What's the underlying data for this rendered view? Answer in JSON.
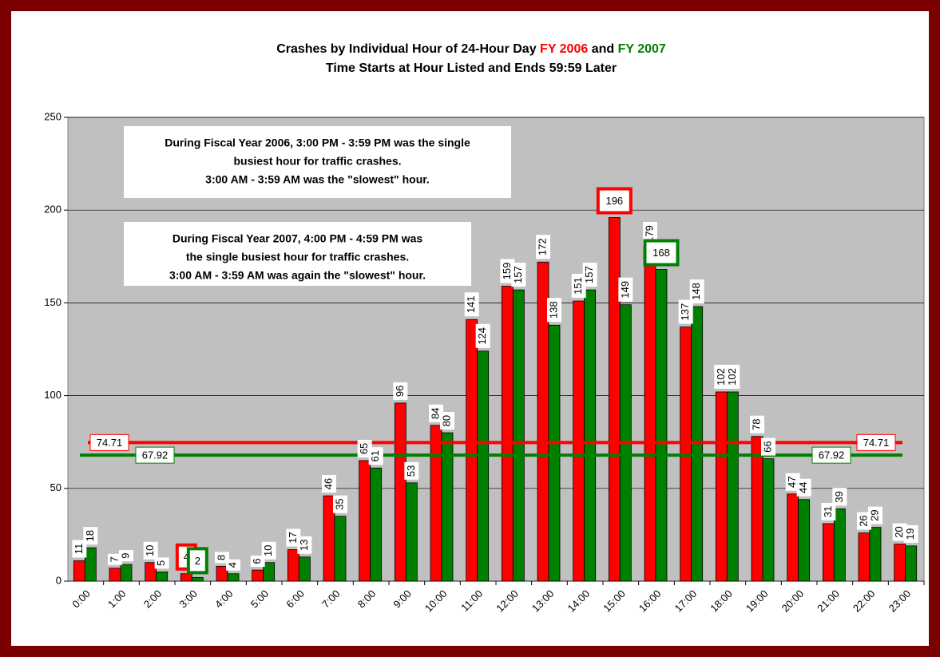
{
  "chart_data": {
    "type": "bar",
    "title": "Crashes by Individual Hour of 24-Hour Day",
    "title_joiner": "and",
    "subtitle": "Time Starts at Hour Listed and Ends 59:59 Later",
    "categories": [
      "0:00",
      "1:00",
      "2:00",
      "3:00",
      "4:00",
      "5:00",
      "6:00",
      "7:00",
      "8:00",
      "9:00",
      "10:00",
      "11:00",
      "12:00",
      "13:00",
      "14:00",
      "15:00",
      "16:00",
      "17:00",
      "18:00",
      "19:00",
      "20:00",
      "21:00",
      "22:00",
      "23:00"
    ],
    "series": [
      {
        "name": "FY 2006",
        "color": "#ff0000",
        "highlight": [
          3,
          15
        ],
        "values": [
          11,
          7,
          10,
          4,
          8,
          6,
          17,
          46,
          65,
          96,
          84,
          141,
          159,
          172,
          151,
          196,
          179,
          137,
          102,
          78,
          47,
          31,
          26,
          20
        ]
      },
      {
        "name": "FY 2007",
        "color": "#008000",
        "highlight": [
          3,
          16
        ],
        "values": [
          18,
          9,
          5,
          2,
          4,
          10,
          13,
          35,
          61,
          53,
          80,
          124,
          157,
          138,
          157,
          149,
          168,
          148,
          102,
          66,
          44,
          39,
          29,
          19
        ]
      }
    ],
    "reference_lines": [
      {
        "value": 74.71,
        "color": "#ff0000"
      },
      {
        "value": 67.92,
        "color": "#008000"
      }
    ],
    "annotations": [
      {
        "color": "#ff0000",
        "lines": [
          "During Fiscal Year 2006, 3:00 PM - 3:59 PM was the single",
          "busiest hour for traffic crashes.",
          "3:00 AM - 3:59 AM was the \"slowest\" hour."
        ]
      },
      {
        "color": "#008000",
        "lines": [
          "During Fiscal Year 2007, 4:00 PM - 4:59 PM was",
          "the single busiest hour for traffic crashes.",
          "3:00 AM - 3:59 AM was again the \"slowest\" hour."
        ]
      }
    ],
    "ylim": [
      0,
      250
    ],
    "yticks": [
      0,
      50,
      100,
      150,
      200,
      250
    ],
    "grid": true
  }
}
